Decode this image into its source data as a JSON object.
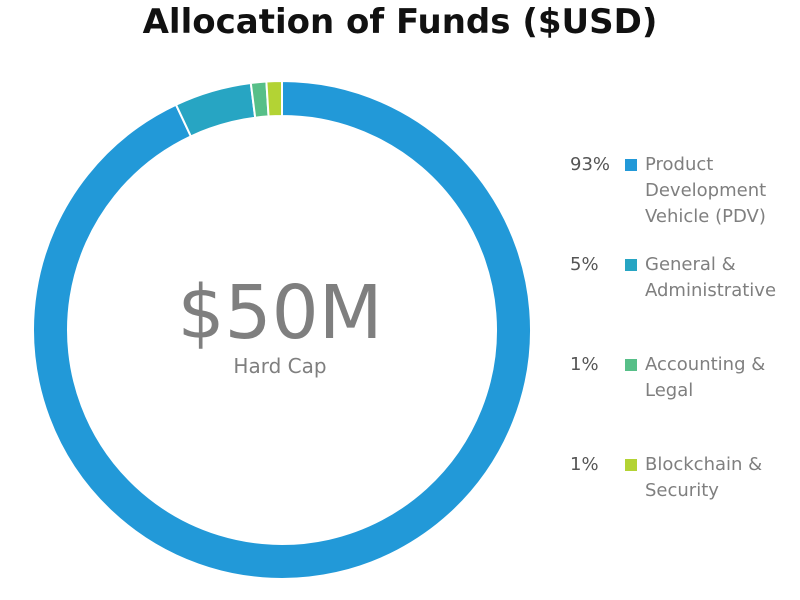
{
  "chart_data": {
    "type": "pie",
    "title": "Allocation of Funds ($USD)",
    "center_value": "$50M",
    "center_label": "Hard Cap",
    "legend_position": "right",
    "slices": [
      {
        "label": "Product\nDevelopment\nVehicle (PDV)",
        "pct_label": "93%",
        "value": 93,
        "color": "#2299d8"
      },
      {
        "label": "General &\nAdministrative",
        "pct_label": "5%",
        "value": 5,
        "color": "#27a5c3"
      },
      {
        "label": "Accounting &\nLegal",
        "pct_label": "1%",
        "value": 1,
        "color": "#57bf88"
      },
      {
        "label": "Blockchain &\nSecurity",
        "pct_label": "1%",
        "value": 1,
        "color": "#b3d334"
      }
    ]
  }
}
